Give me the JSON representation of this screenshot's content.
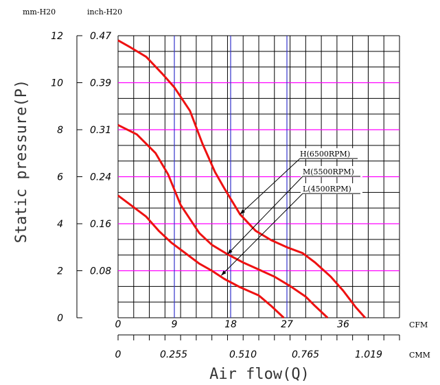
{
  "chart_data": {
    "type": "line",
    "ylabel": "Static pressure(P)",
    "xlabel": "Air flow(Q)",
    "y_units": [
      "mm-H20",
      "inch-H20"
    ],
    "x_units": [
      "CFM",
      "CMM"
    ],
    "ylim": [
      0,
      12
    ],
    "xlim": [
      0,
      45
    ],
    "y_ticks_mm": [
      "12",
      "10",
      "8",
      "6",
      "4",
      "2",
      "0"
    ],
    "y_ticks_inch": [
      "0.47",
      "0.39",
      "0.31",
      "0.24",
      "0.16",
      "0.08"
    ],
    "x_ticks_cfm": [
      "0",
      "9",
      "18",
      "27",
      "36"
    ],
    "x_ticks_cmm": [
      "0",
      "0.255",
      "0.510",
      "0.765",
      "1.019"
    ],
    "grid": true,
    "colors": {
      "curve": "#ee1111",
      "grid": "#000000",
      "h_accent": "#ff00ff",
      "v_accent": "#3333cc"
    },
    "series": [
      {
        "name": "H(6500RPM)",
        "points": [
          [
            0,
            11.8
          ],
          [
            2,
            11.5
          ],
          [
            4.5,
            11.1
          ],
          [
            7,
            10.4
          ],
          [
            9,
            9.8
          ],
          [
            11.5,
            8.8
          ],
          [
            13.5,
            7.4
          ],
          [
            15.5,
            6.2
          ],
          [
            17,
            5.5
          ],
          [
            19.5,
            4.4
          ],
          [
            22,
            3.7
          ],
          [
            24.5,
            3.3
          ],
          [
            27,
            3.0
          ],
          [
            29.5,
            2.75
          ],
          [
            31.5,
            2.35
          ],
          [
            34,
            1.75
          ],
          [
            36,
            1.15
          ],
          [
            38,
            0.45
          ],
          [
            39.5,
            0.0
          ]
        ]
      },
      {
        "name": "M(5500RPM)",
        "points": [
          [
            0,
            8.2
          ],
          [
            3,
            7.8
          ],
          [
            6,
            7.0
          ],
          [
            8,
            6.1
          ],
          [
            10,
            4.8
          ],
          [
            13,
            3.6
          ],
          [
            15,
            3.1
          ],
          [
            17.5,
            2.7
          ],
          [
            20,
            2.35
          ],
          [
            22.5,
            2.05
          ],
          [
            25,
            1.75
          ],
          [
            27.5,
            1.35
          ],
          [
            30,
            0.9
          ],
          [
            31.5,
            0.5
          ],
          [
            33.5,
            0.0
          ]
        ]
      },
      {
        "name": "L(4500RPM)",
        "points": [
          [
            0,
            5.2
          ],
          [
            2,
            4.8
          ],
          [
            4.5,
            4.3
          ],
          [
            6.5,
            3.7
          ],
          [
            8.5,
            3.2
          ],
          [
            11,
            2.7
          ],
          [
            13,
            2.3
          ],
          [
            15,
            2.0
          ],
          [
            17,
            1.65
          ],
          [
            19.5,
            1.3
          ],
          [
            22.5,
            0.95
          ],
          [
            24.5,
            0.5
          ],
          [
            26.5,
            0.0
          ]
        ]
      }
    ],
    "annotations": [
      {
        "text": "H(6500RPM)",
        "target": [
          19.5,
          4.4
        ]
      },
      {
        "text": "M(5500RPM)",
        "target": [
          17.5,
          2.7
        ]
      },
      {
        "text": "L(4500RPM)",
        "target": [
          16.5,
          1.8
        ]
      }
    ]
  }
}
